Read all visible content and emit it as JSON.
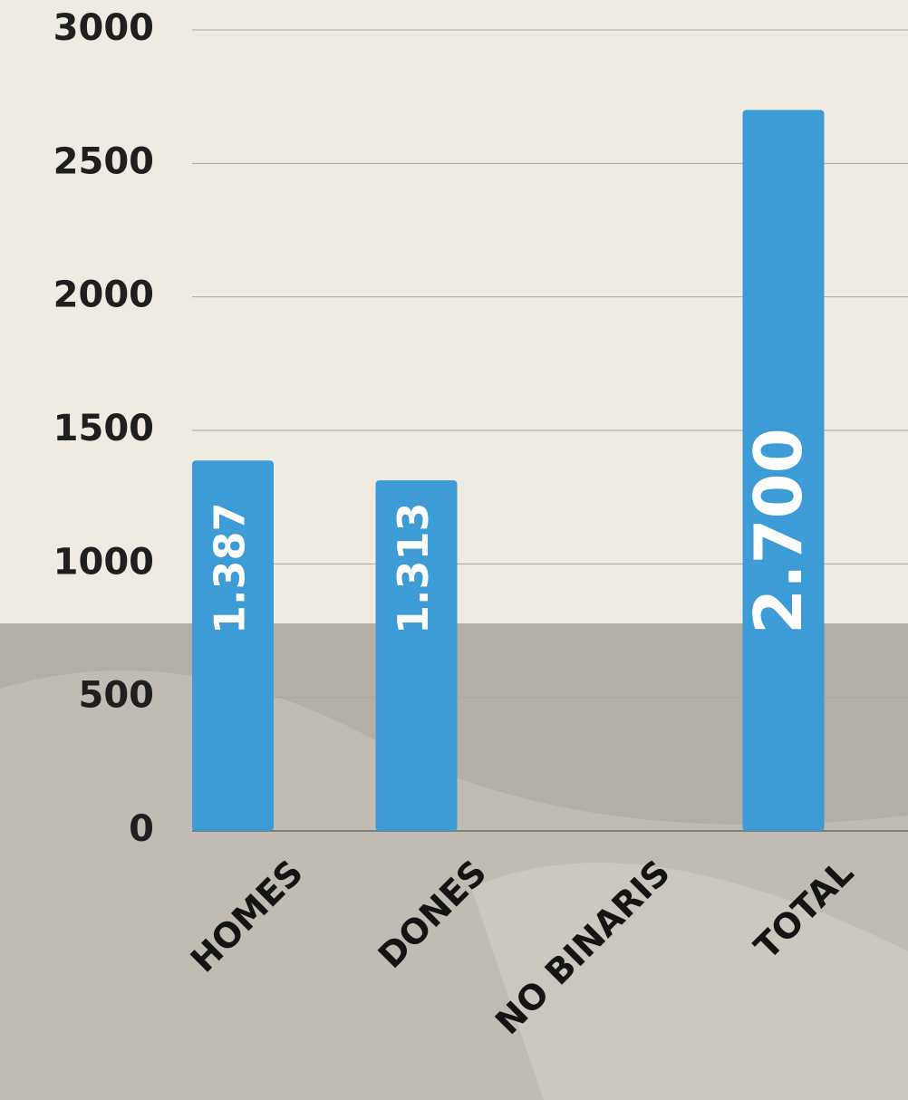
{
  "chart_data": {
    "type": "bar",
    "categories": [
      "HOMES",
      "DONES",
      "NO BINARIS",
      "TOTAL"
    ],
    "values": [
      1387,
      1313,
      0,
      2700
    ],
    "value_labels": [
      "1.387",
      "1.313",
      null,
      "2.700"
    ],
    "color": "#3d9bd6",
    "ylim": [
      0,
      3000
    ],
    "yticks": [
      0,
      500,
      1000,
      1500,
      2000,
      2500,
      3000
    ],
    "grid": true
  }
}
